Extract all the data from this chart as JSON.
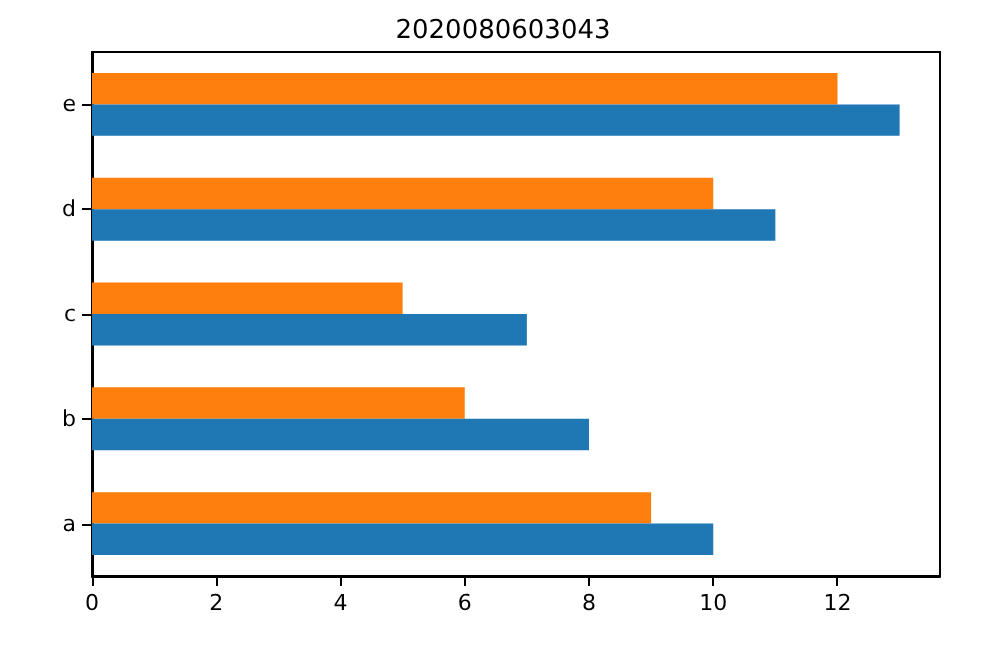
{
  "chart_data": {
    "type": "bar",
    "orientation": "horizontal",
    "title": "2020080603043",
    "categories": [
      "e",
      "d",
      "c",
      "b",
      "a"
    ],
    "series": [
      {
        "color": "#ff7f0e",
        "values": [
          12,
          10,
          5,
          6,
          9
        ]
      },
      {
        "color": "#1f77b4",
        "values": [
          13,
          11,
          7,
          8,
          10
        ]
      }
    ],
    "xlim": [
      0,
      13.65
    ],
    "xticks": [
      0,
      2,
      4,
      6,
      8,
      10,
      12
    ],
    "grid": false
  }
}
